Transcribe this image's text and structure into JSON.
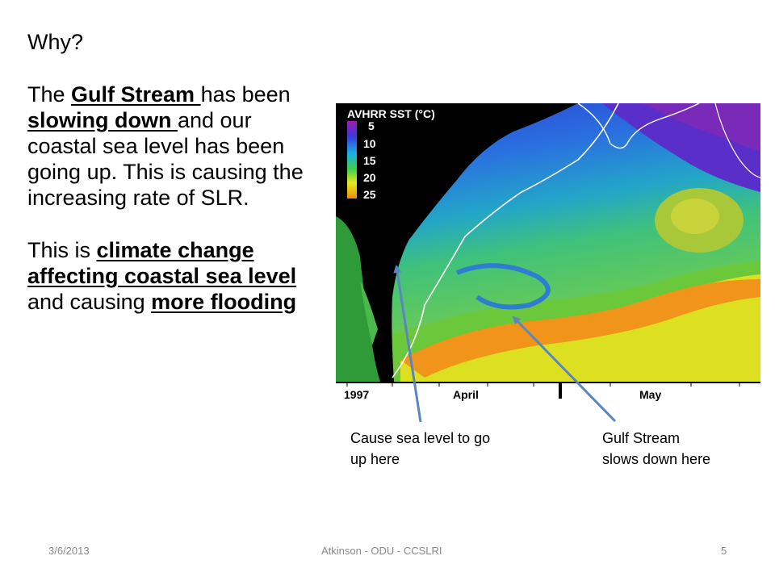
{
  "slide": {
    "heading": "Why?",
    "para1": {
      "t1": "The ",
      "gulf": "Gulf Stream ",
      "t2": "has been ",
      "slowing": "slowing down ",
      "t3": "and our coastal sea level has been going up. This is causing the increasing rate of SLR."
    },
    "para2": {
      "t1": "This is ",
      "climate": "climate change affecting coastal sea level ",
      "t2": "and causing ",
      "more": "more flooding"
    },
    "map": {
      "title": "AVHRR SST (°C)",
      "legend": [
        "5",
        "10",
        "15",
        "20",
        "25"
      ],
      "timeline": {
        "year": "1997",
        "month1": "April",
        "month2": "May"
      }
    },
    "captions": {
      "left": [
        "Cause sea level to go",
        "up here"
      ],
      "right": [
        "Gulf Stream",
        "slows down here"
      ]
    },
    "footer": {
      "date": "3/6/2013",
      "center": "Atkinson - ODU - CCSLRI",
      "page": "5"
    }
  }
}
